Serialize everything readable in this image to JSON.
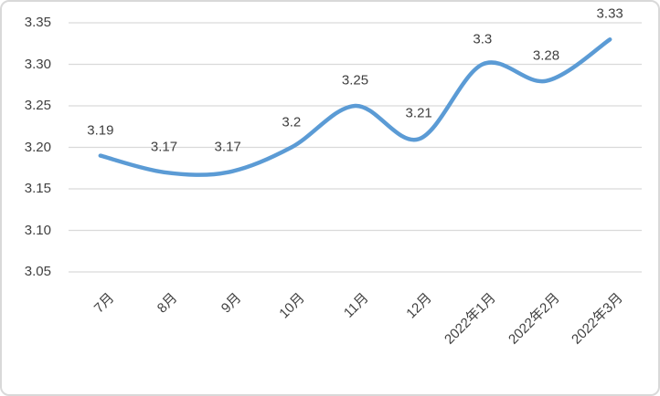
{
  "chart_data": {
    "type": "line",
    "smooth": true,
    "categories": [
      "7月",
      "8月",
      "9月",
      "10月",
      "11月",
      "12月",
      "2022年1月",
      "2022年2月",
      "2022年3月"
    ],
    "values": [
      3.19,
      3.17,
      3.17,
      3.2,
      3.25,
      3.21,
      3.3,
      3.28,
      3.33
    ],
    "point_labels": [
      "3.19",
      "3.17",
      "3.17",
      "3.2",
      "3.25",
      "3.21",
      "3.3",
      "3.28",
      "3.33"
    ],
    "y_ticks": [
      "3.35",
      "3.30",
      "3.25",
      "3.20",
      "3.15",
      "3.10",
      "3.05"
    ],
    "ylim": [
      3.05,
      3.35
    ],
    "title": "",
    "xlabel": "",
    "ylabel": "",
    "grid": "horizontal",
    "legend": "none",
    "markers": "none",
    "colors": {
      "line": "#5B9BD5",
      "gridline": "#D9D9D9",
      "tick_label": "#404040",
      "data_label": "#3F3F3F",
      "x_label": "#404040",
      "border": "#D9D9D9",
      "background": "#FFFFFF"
    }
  }
}
